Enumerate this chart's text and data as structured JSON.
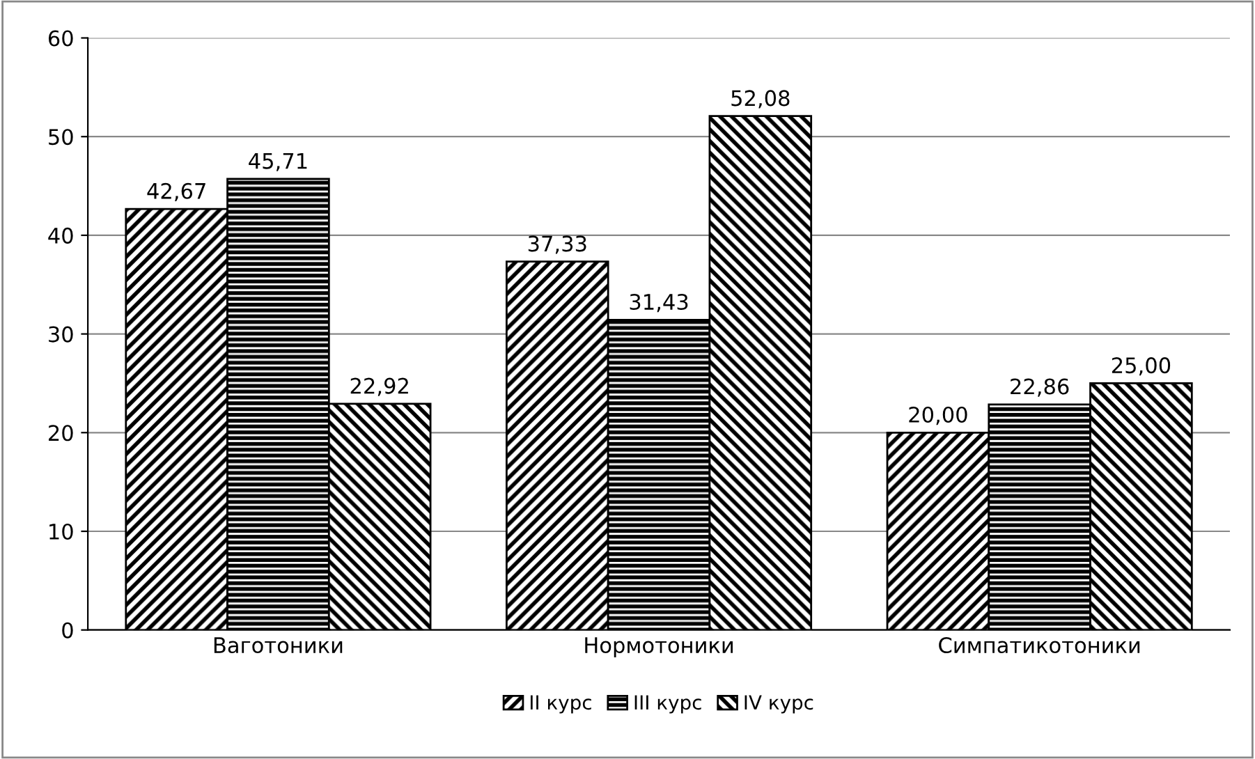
{
  "chart_data": {
    "type": "bar",
    "categories": [
      "Ваготоники",
      "Нормотоники",
      "Симпатикотоники"
    ],
    "series": [
      {
        "name": "II курс",
        "color": "#000000",
        "values": [
          42.67,
          37.33,
          20.0
        ],
        "value_labels": [
          "42,67",
          "37,33",
          "20,00"
        ]
      },
      {
        "name": "III курс",
        "color": "#000000",
        "values": [
          45.71,
          31.43,
          22.86
        ],
        "value_labels": [
          "45,71",
          "31,43",
          "22,86"
        ]
      },
      {
        "name": "IV курс",
        "color": "#000000",
        "values": [
          22.92,
          52.08,
          25.0
        ],
        "value_labels": [
          "22,92",
          "52,08",
          "25,00"
        ]
      }
    ],
    "ylim": [
      0,
      60
    ],
    "yticks": [
      0,
      10,
      20,
      30,
      40,
      50,
      60
    ],
    "grid": "y",
    "legend": "bottom"
  }
}
